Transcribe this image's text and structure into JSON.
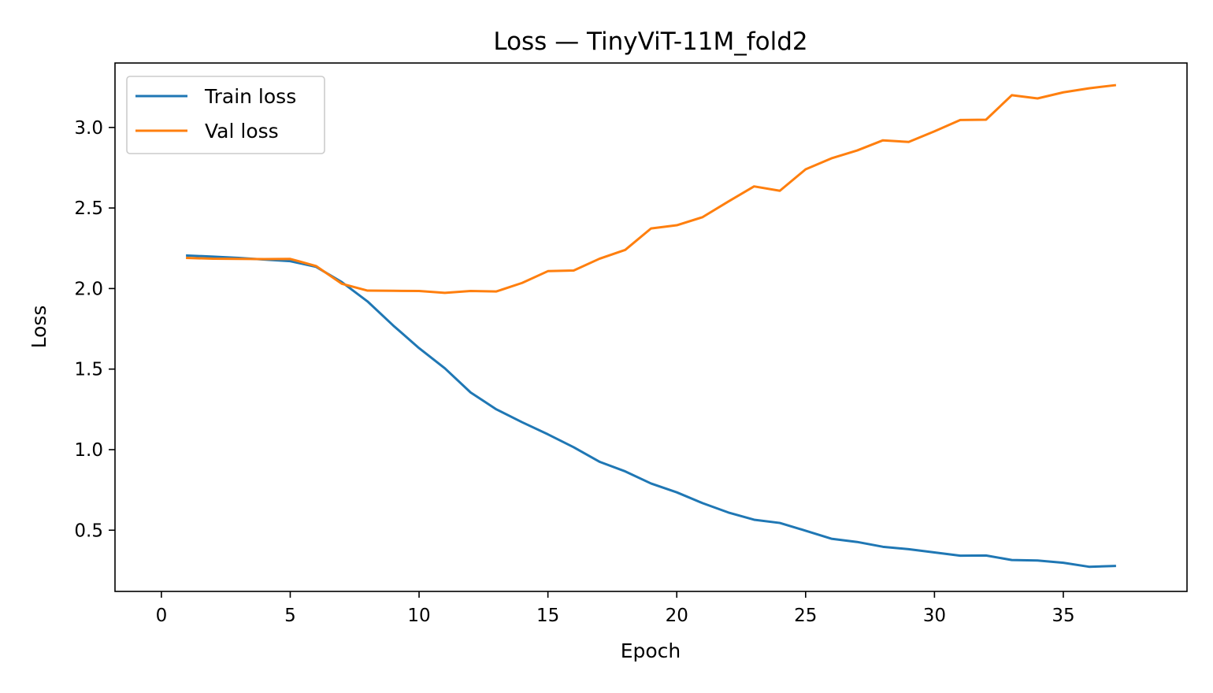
{
  "chart_data": {
    "type": "line",
    "title": "Loss — TinyViT-11M_fold2",
    "xlabel": "Epoch",
    "ylabel": "Loss",
    "xlim": [
      -1.8,
      39.8
    ],
    "ylim": [
      0.12,
      3.4
    ],
    "x_ticks": [
      0,
      5,
      10,
      15,
      20,
      25,
      30,
      35
    ],
    "y_ticks": [
      0.5,
      1.0,
      1.5,
      2.0,
      2.5,
      3.0
    ],
    "y_tick_labels": [
      "0.5",
      "1.0",
      "1.5",
      "2.0",
      "2.5",
      "3.0"
    ],
    "grid": false,
    "legend_position": "upper-left",
    "x": [
      1,
      2,
      3,
      4,
      5,
      6,
      7,
      8,
      9,
      10,
      11,
      12,
      13,
      14,
      15,
      16,
      17,
      18,
      19,
      20,
      21,
      22,
      23,
      24,
      25,
      26,
      27,
      28,
      29,
      30,
      31,
      32,
      33,
      34,
      35,
      36,
      37
    ],
    "series": [
      {
        "name": "Train loss",
        "color": "#1f77b4",
        "values": [
          2.205,
          2.198,
          2.19,
          2.18,
          2.17,
          2.135,
          2.04,
          1.92,
          1.77,
          1.63,
          1.505,
          1.355,
          1.25,
          1.17,
          1.095,
          1.015,
          0.925,
          0.865,
          0.79,
          0.735,
          0.668,
          0.61,
          0.565,
          0.545,
          0.497,
          0.447,
          0.427,
          0.397,
          0.382,
          0.362,
          0.342,
          0.343,
          0.315,
          0.312,
          0.298,
          0.273,
          0.278
        ]
      },
      {
        "name": "Val loss",
        "color": "#ff7f0e",
        "values": [
          2.19,
          2.185,
          2.184,
          2.183,
          2.184,
          2.14,
          2.03,
          1.987,
          1.986,
          1.985,
          1.973,
          1.985,
          1.982,
          2.035,
          2.108,
          2.112,
          2.185,
          2.24,
          2.373,
          2.393,
          2.443,
          2.54,
          2.634,
          2.607,
          2.74,
          2.808,
          2.857,
          2.92,
          2.91,
          2.976,
          3.046,
          3.048,
          3.2,
          3.18,
          3.218,
          3.243,
          3.262
        ]
      }
    ]
  }
}
